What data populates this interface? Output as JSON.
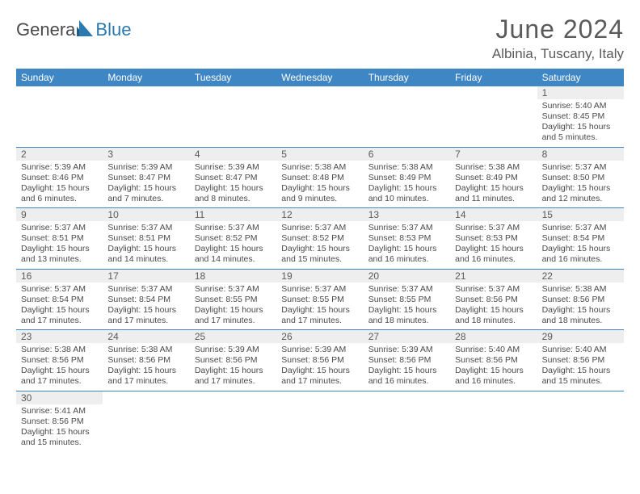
{
  "brand": {
    "main": "Genera",
    "blue": "Blue"
  },
  "title": "June 2024",
  "location": "Albinia, Tuscany, Italy",
  "colors": {
    "header_bg": "#3f86c5",
    "header_text": "#ffffff",
    "daynum_bg": "#eeeeee",
    "text": "#4a4a4a",
    "row_border": "#3f86c5",
    "logo_blue": "#2a7ab0",
    "logo_gray": "#4a4a4a"
  },
  "typography": {
    "title_fontsize": 32,
    "location_fontsize": 17,
    "dow_fontsize": 12,
    "daynum_fontsize": 12,
    "body_fontsize": 10.5,
    "font_family": "Arial"
  },
  "dow": [
    "Sunday",
    "Monday",
    "Tuesday",
    "Wednesday",
    "Thursday",
    "Friday",
    "Saturday"
  ],
  "weeks": [
    [
      {
        "blank": true
      },
      {
        "blank": true
      },
      {
        "blank": true
      },
      {
        "blank": true
      },
      {
        "blank": true
      },
      {
        "blank": true
      },
      {
        "n": "1",
        "sunrise": "Sunrise: 5:40 AM",
        "sunset": "Sunset: 8:45 PM",
        "day1": "Daylight: 15 hours",
        "day2": "and 5 minutes."
      }
    ],
    [
      {
        "n": "2",
        "sunrise": "Sunrise: 5:39 AM",
        "sunset": "Sunset: 8:46 PM",
        "day1": "Daylight: 15 hours",
        "day2": "and 6 minutes."
      },
      {
        "n": "3",
        "sunrise": "Sunrise: 5:39 AM",
        "sunset": "Sunset: 8:47 PM",
        "day1": "Daylight: 15 hours",
        "day2": "and 7 minutes."
      },
      {
        "n": "4",
        "sunrise": "Sunrise: 5:39 AM",
        "sunset": "Sunset: 8:47 PM",
        "day1": "Daylight: 15 hours",
        "day2": "and 8 minutes."
      },
      {
        "n": "5",
        "sunrise": "Sunrise: 5:38 AM",
        "sunset": "Sunset: 8:48 PM",
        "day1": "Daylight: 15 hours",
        "day2": "and 9 minutes."
      },
      {
        "n": "6",
        "sunrise": "Sunrise: 5:38 AM",
        "sunset": "Sunset: 8:49 PM",
        "day1": "Daylight: 15 hours",
        "day2": "and 10 minutes."
      },
      {
        "n": "7",
        "sunrise": "Sunrise: 5:38 AM",
        "sunset": "Sunset: 8:49 PM",
        "day1": "Daylight: 15 hours",
        "day2": "and 11 minutes."
      },
      {
        "n": "8",
        "sunrise": "Sunrise: 5:37 AM",
        "sunset": "Sunset: 8:50 PM",
        "day1": "Daylight: 15 hours",
        "day2": "and 12 minutes."
      }
    ],
    [
      {
        "n": "9",
        "sunrise": "Sunrise: 5:37 AM",
        "sunset": "Sunset: 8:51 PM",
        "day1": "Daylight: 15 hours",
        "day2": "and 13 minutes."
      },
      {
        "n": "10",
        "sunrise": "Sunrise: 5:37 AM",
        "sunset": "Sunset: 8:51 PM",
        "day1": "Daylight: 15 hours",
        "day2": "and 14 minutes."
      },
      {
        "n": "11",
        "sunrise": "Sunrise: 5:37 AM",
        "sunset": "Sunset: 8:52 PM",
        "day1": "Daylight: 15 hours",
        "day2": "and 14 minutes."
      },
      {
        "n": "12",
        "sunrise": "Sunrise: 5:37 AM",
        "sunset": "Sunset: 8:52 PM",
        "day1": "Daylight: 15 hours",
        "day2": "and 15 minutes."
      },
      {
        "n": "13",
        "sunrise": "Sunrise: 5:37 AM",
        "sunset": "Sunset: 8:53 PM",
        "day1": "Daylight: 15 hours",
        "day2": "and 16 minutes."
      },
      {
        "n": "14",
        "sunrise": "Sunrise: 5:37 AM",
        "sunset": "Sunset: 8:53 PM",
        "day1": "Daylight: 15 hours",
        "day2": "and 16 minutes."
      },
      {
        "n": "15",
        "sunrise": "Sunrise: 5:37 AM",
        "sunset": "Sunset: 8:54 PM",
        "day1": "Daylight: 15 hours",
        "day2": "and 16 minutes."
      }
    ],
    [
      {
        "n": "16",
        "sunrise": "Sunrise: 5:37 AM",
        "sunset": "Sunset: 8:54 PM",
        "day1": "Daylight: 15 hours",
        "day2": "and 17 minutes."
      },
      {
        "n": "17",
        "sunrise": "Sunrise: 5:37 AM",
        "sunset": "Sunset: 8:54 PM",
        "day1": "Daylight: 15 hours",
        "day2": "and 17 minutes."
      },
      {
        "n": "18",
        "sunrise": "Sunrise: 5:37 AM",
        "sunset": "Sunset: 8:55 PM",
        "day1": "Daylight: 15 hours",
        "day2": "and 17 minutes."
      },
      {
        "n": "19",
        "sunrise": "Sunrise: 5:37 AM",
        "sunset": "Sunset: 8:55 PM",
        "day1": "Daylight: 15 hours",
        "day2": "and 17 minutes."
      },
      {
        "n": "20",
        "sunrise": "Sunrise: 5:37 AM",
        "sunset": "Sunset: 8:55 PM",
        "day1": "Daylight: 15 hours",
        "day2": "and 18 minutes."
      },
      {
        "n": "21",
        "sunrise": "Sunrise: 5:37 AM",
        "sunset": "Sunset: 8:56 PM",
        "day1": "Daylight: 15 hours",
        "day2": "and 18 minutes."
      },
      {
        "n": "22",
        "sunrise": "Sunrise: 5:38 AM",
        "sunset": "Sunset: 8:56 PM",
        "day1": "Daylight: 15 hours",
        "day2": "and 18 minutes."
      }
    ],
    [
      {
        "n": "23",
        "sunrise": "Sunrise: 5:38 AM",
        "sunset": "Sunset: 8:56 PM",
        "day1": "Daylight: 15 hours",
        "day2": "and 17 minutes."
      },
      {
        "n": "24",
        "sunrise": "Sunrise: 5:38 AM",
        "sunset": "Sunset: 8:56 PM",
        "day1": "Daylight: 15 hours",
        "day2": "and 17 minutes."
      },
      {
        "n": "25",
        "sunrise": "Sunrise: 5:39 AM",
        "sunset": "Sunset: 8:56 PM",
        "day1": "Daylight: 15 hours",
        "day2": "and 17 minutes."
      },
      {
        "n": "26",
        "sunrise": "Sunrise: 5:39 AM",
        "sunset": "Sunset: 8:56 PM",
        "day1": "Daylight: 15 hours",
        "day2": "and 17 minutes."
      },
      {
        "n": "27",
        "sunrise": "Sunrise: 5:39 AM",
        "sunset": "Sunset: 8:56 PM",
        "day1": "Daylight: 15 hours",
        "day2": "and 16 minutes."
      },
      {
        "n": "28",
        "sunrise": "Sunrise: 5:40 AM",
        "sunset": "Sunset: 8:56 PM",
        "day1": "Daylight: 15 hours",
        "day2": "and 16 minutes."
      },
      {
        "n": "29",
        "sunrise": "Sunrise: 5:40 AM",
        "sunset": "Sunset: 8:56 PM",
        "day1": "Daylight: 15 hours",
        "day2": "and 15 minutes."
      }
    ],
    [
      {
        "n": "30",
        "sunrise": "Sunrise: 5:41 AM",
        "sunset": "Sunset: 8:56 PM",
        "day1": "Daylight: 15 hours",
        "day2": "and 15 minutes."
      },
      {
        "blank": true
      },
      {
        "blank": true
      },
      {
        "blank": true
      },
      {
        "blank": true
      },
      {
        "blank": true
      },
      {
        "blank": true
      }
    ]
  ]
}
